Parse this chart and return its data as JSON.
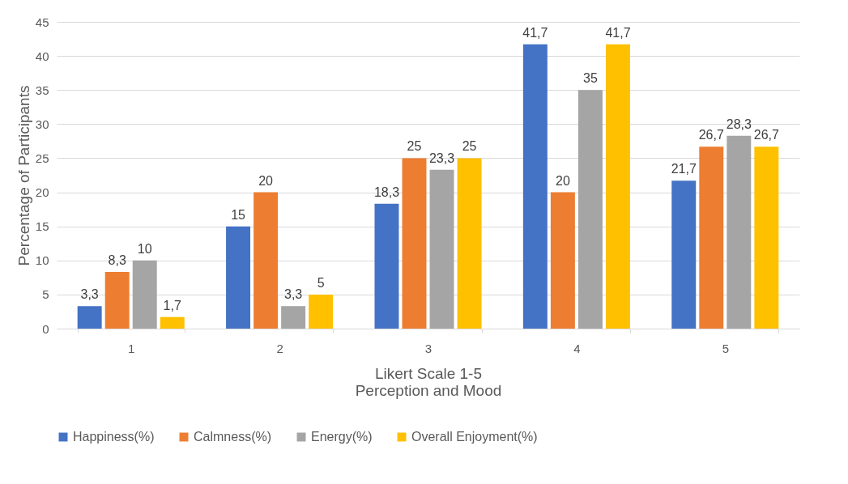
{
  "chart_data": {
    "type": "bar",
    "xlabel": "Likert Scale 1-5\nPerception and Mood",
    "ylabel": "Percentage of Participants",
    "categories": [
      "1",
      "2",
      "3",
      "4",
      "5"
    ],
    "series": [
      {
        "name": "Happiness(%)",
        "color": "#4472c4",
        "values": [
          3.3,
          15,
          18.3,
          41.7,
          21.7
        ],
        "value_labels": [
          "3,3",
          "15",
          "18,3",
          "41,7",
          "21,7"
        ]
      },
      {
        "name": "Calmness(%)",
        "color": "#ed7d31",
        "values": [
          8.3,
          20,
          25,
          20,
          26.7
        ],
        "value_labels": [
          "8,3",
          "20",
          "25",
          "20",
          "26,7"
        ]
      },
      {
        "name": "Energy(%)",
        "color": "#a5a5a5",
        "values": [
          10,
          3.3,
          23.3,
          35,
          28.3
        ],
        "value_labels": [
          "10",
          "3,3",
          "23,3",
          "35",
          "28,3"
        ]
      },
      {
        "name": "Overall Enjoyment(%)",
        "color": "#ffc000",
        "values": [
          1.7,
          5,
          25,
          41.7,
          26.7
        ],
        "value_labels": [
          "1,7",
          "5",
          "25",
          "41,7",
          "26,7"
        ]
      }
    ],
    "ylim": [
      0,
      45
    ],
    "yticks": [
      0,
      5,
      10,
      15,
      20,
      25,
      30,
      35,
      40,
      45
    ],
    "grid": "y",
    "legend": "bottom"
  }
}
